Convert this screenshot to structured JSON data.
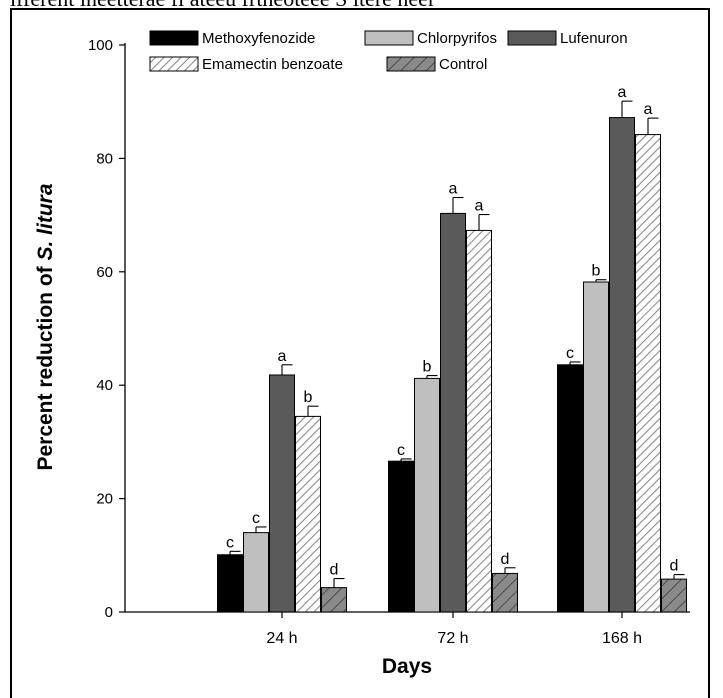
{
  "caption": "ifferent ineetterae fl ateeu frtheoteee S itere neer",
  "chart_data": {
    "type": "bar",
    "xlabel": "Days",
    "ylabel_prefix": "Percent reduction of ",
    "ylabel_italic": "S. litura",
    "ylim": [
      0,
      100
    ],
    "yticks": [
      0,
      20,
      40,
      60,
      80,
      100
    ],
    "categories": [
      "24 h",
      "72 h",
      "168 h"
    ],
    "legend_position": "top",
    "grid": false,
    "series": [
      {
        "name": "Methoxyfenozide",
        "fill": "solid-black",
        "color": "#000000",
        "values": [
          10.1,
          26.6,
          43.6
        ],
        "errors": [
          0.6,
          0.4,
          0.5
        ],
        "letters": [
          "c",
          "c",
          "c"
        ]
      },
      {
        "name": "Chlorpyrifos",
        "fill": "light-gray",
        "color": "#bdbdbd",
        "values": [
          14.0,
          41.2,
          58.2
        ],
        "errors": [
          1.0,
          0.5,
          0.4
        ],
        "letters": [
          "c",
          "b",
          "b"
        ]
      },
      {
        "name": "Lufenuron",
        "fill": "dark-gray",
        "color": "#595959",
        "values": [
          41.8,
          70.3,
          87.2
        ],
        "errors": [
          1.8,
          2.8,
          2.9
        ],
        "letters": [
          "a",
          "a",
          "a"
        ]
      },
      {
        "name": "Emamectin benzoate",
        "fill": "hatched-light",
        "color": "#8c8c8c",
        "values": [
          34.5,
          67.3,
          84.2
        ],
        "errors": [
          1.8,
          2.8,
          2.9
        ],
        "letters": [
          "b",
          "a",
          "a"
        ]
      },
      {
        "name": "Control",
        "fill": "hatched-dark",
        "color": "#7a7a7a",
        "values": [
          4.3,
          6.8,
          5.8
        ],
        "errors": [
          1.6,
          1.0,
          0.8
        ],
        "letters": [
          "d",
          "d",
          "d"
        ]
      }
    ]
  }
}
